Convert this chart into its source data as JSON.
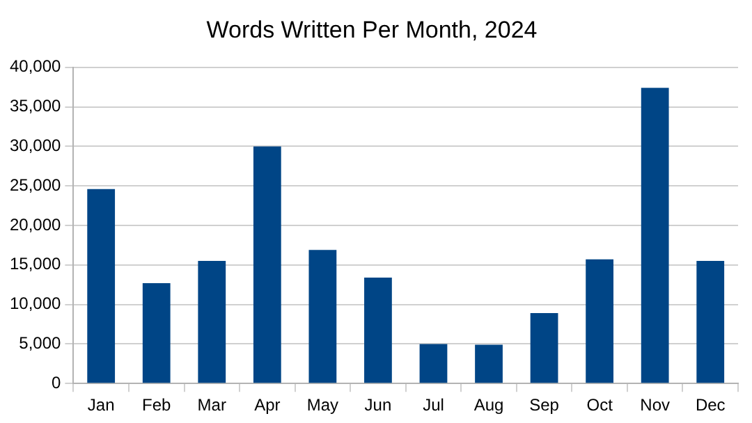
{
  "chart_data": {
    "type": "bar",
    "title": "Words Written Per Month, 2024",
    "categories": [
      "Jan",
      "Feb",
      "Mar",
      "Apr",
      "May",
      "Jun",
      "Jul",
      "Aug",
      "Sep",
      "Oct",
      "Nov",
      "Dec"
    ],
    "values": [
      24600,
      12700,
      15500,
      30000,
      16900,
      13400,
      5000,
      4900,
      8900,
      15700,
      37400,
      15500
    ],
    "color": "#004586",
    "ylim": [
      0,
      40000
    ],
    "yticks": [
      0,
      {
        "value": 5000,
        "label": "5,000"
      },
      {
        "value": 10000,
        "label": "10,000"
      },
      {
        "value": 15000,
        "label": "15,000"
      },
      {
        "value": 20000,
        "label": "20,000"
      },
      {
        "value": 25000,
        "label": "25,000"
      },
      {
        "value": 30000,
        "label": "30,000"
      },
      {
        "value": 35000,
        "label": "35,000"
      },
      {
        "value": 40000,
        "label": "40,000"
      }
    ],
    "grid": "y"
  }
}
